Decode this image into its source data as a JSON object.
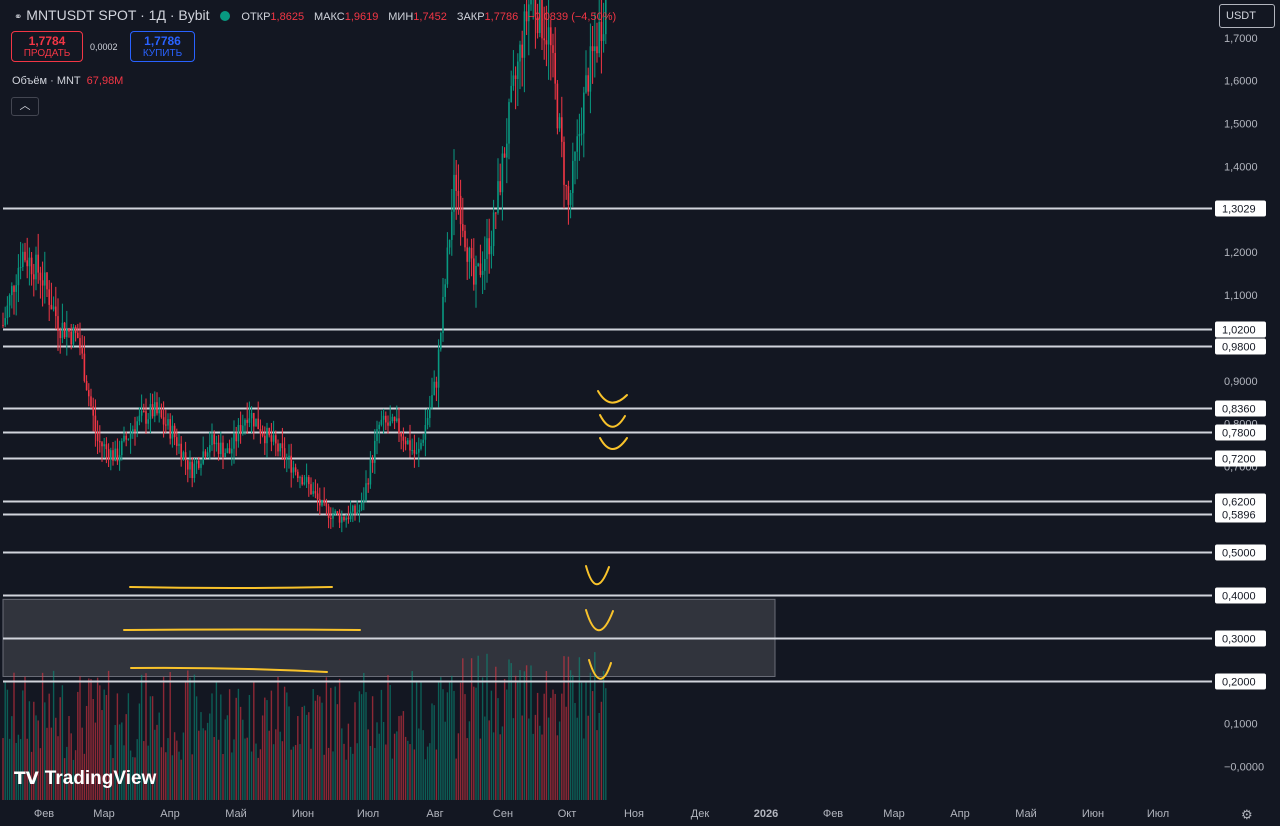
{
  "header": {
    "symbol": "MNTUSDT SPOT · 1Д · Bybit",
    "open_label": "ОТКР",
    "open": "1,8625",
    "high_label": "МАКС",
    "high": "1,9619",
    "low_label": "МИН",
    "low": "1,7452",
    "close_label": "ЗАКР",
    "close": "1,7786",
    "change": "−0,0839 (−4,50%)"
  },
  "trade": {
    "sell_price": "1,7784",
    "sell_label": "ПРОДАТЬ",
    "spread": "0,0002",
    "buy_price": "1,7786",
    "buy_label": "КУПИТЬ"
  },
  "volume": {
    "label": "Объём · MNT",
    "value": "67,98M"
  },
  "collapse_icon": "chevron-up-icon",
  "currency_button": "USDT",
  "brand": "TradingView",
  "settings_icon": "gear-icon",
  "colors": {
    "up": "#089981",
    "down": "#f23645",
    "background": "#131722",
    "hline": "#d1d4dc",
    "marker": "#f9c32b",
    "zone": "#3c3f47"
  },
  "chart_data": {
    "type": "candlestick",
    "ylim": [
      -0.03,
      1.75
    ],
    "y_axis_ticks": [
      "1,7000",
      "1,6000",
      "1,5000",
      "1,4000",
      "1,2000",
      "1,1000",
      "0,9000",
      "0,8000",
      "0,7000",
      "0,1000",
      "−0,0000"
    ],
    "y_axis_tick_values": [
      1.7,
      1.6,
      1.5,
      1.4,
      1.2,
      1.1,
      0.9,
      0.8,
      0.7,
      0.1,
      0.0
    ],
    "x_axis_ticks": [
      "Фев",
      "Мар",
      "Апр",
      "Май",
      "Июн",
      "Июл",
      "Авг",
      "Сен",
      "Окт",
      "Ноя",
      "Дек",
      "2026",
      "Фев",
      "Мар",
      "Апр",
      "Май",
      "Июн",
      "Июл"
    ],
    "horizontal_levels": [
      {
        "value": 1.3029,
        "label": "1,3029"
      },
      {
        "value": 1.02,
        "label": "1,0200"
      },
      {
        "value": 0.98,
        "label": "0,9800"
      },
      {
        "value": 0.836,
        "label": "0,8360"
      },
      {
        "value": 0.78,
        "label": "0,7800"
      },
      {
        "value": 0.72,
        "label": "0,7200"
      },
      {
        "value": 0.62,
        "label": "0,6200"
      },
      {
        "value": 0.5896,
        "label": "0,5896"
      },
      {
        "value": 0.5,
        "label": "0,5000"
      },
      {
        "value": 0.4,
        "label": "0,4000"
      },
      {
        "value": 0.3,
        "label": "0,3000"
      },
      {
        "value": 0.2,
        "label": "0,2000"
      }
    ],
    "zone": {
      "from": 0.21,
      "to": 0.39
    },
    "price_path": [
      [
        "Фев",
        1.03
      ],
      [
        "Фев",
        1.2
      ],
      [
        "Фев",
        1.15
      ],
      [
        "Фев",
        1.03
      ],
      [
        "Мар",
        1.0
      ],
      [
        "Мар",
        0.76
      ],
      [
        "Мар",
        0.72
      ],
      [
        "Апр",
        0.8
      ],
      [
        "Апр",
        0.83
      ],
      [
        "Апр",
        0.78
      ],
      [
        "Апр",
        0.69
      ],
      [
        "Май",
        0.76
      ],
      [
        "Май",
        0.73
      ],
      [
        "Май",
        0.83
      ],
      [
        "Июн",
        0.77
      ],
      [
        "Июн",
        0.72
      ],
      [
        "Июн",
        0.67
      ],
      [
        "Июл",
        0.6
      ],
      [
        "Июл",
        0.58
      ],
      [
        "Июл",
        0.6
      ],
      [
        "Авг",
        0.8
      ],
      [
        "Авг",
        0.79
      ],
      [
        "Авг",
        0.72
      ],
      [
        "Авг",
        0.9
      ],
      [
        "Авг",
        1.38
      ],
      [
        "Сен",
        1.12
      ],
      [
        "Сен",
        1.25
      ],
      [
        "Сен",
        1.55
      ],
      [
        "Сен",
        1.8
      ],
      [
        "Окт",
        1.7
      ],
      [
        "Окт",
        1.3
      ],
      [
        "Окт",
        1.6
      ],
      [
        "Окт",
        1.78
      ]
    ]
  }
}
